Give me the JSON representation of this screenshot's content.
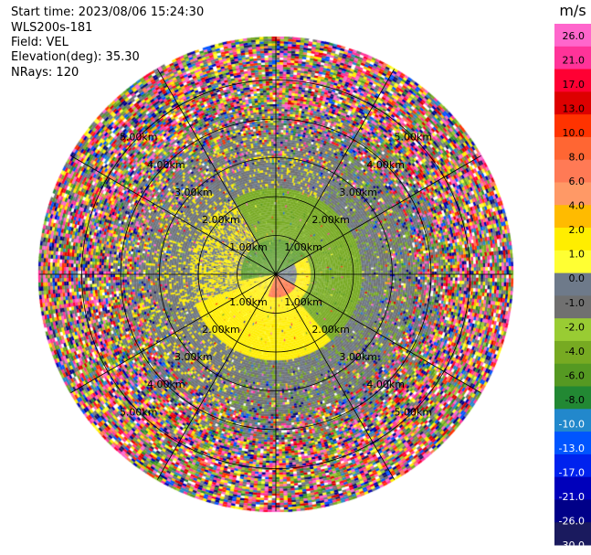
{
  "header": {
    "start_time": "Start time: 2023/08/06 15:24:30",
    "instrument": "WLS200s-181",
    "field": "Field: VEL",
    "elevation": "Elevation(deg): 35.30",
    "nrays": "NRays: 120"
  },
  "chart_data": {
    "type": "heatmap",
    "projection": "polar-ppi",
    "field": "VEL",
    "units": "m/s",
    "elevation_deg": 35.3,
    "nrays": 120,
    "range_rings_km": [
      1.0,
      2.0,
      3.0,
      4.0,
      5.0
    ],
    "range_ring_labels": [
      "1.00km",
      "2.00km",
      "3.00km",
      "4.00km",
      "5.00km"
    ],
    "max_range_km": 6.1,
    "spoke_step_deg": 30,
    "colorbar": {
      "title": "m/s",
      "tick_labels": [
        "26.0",
        "21.0",
        "17.0",
        "13.0",
        "10.0",
        "8.0",
        "6.0",
        "4.0",
        "2.0",
        "1.0",
        "0.0",
        "-1.0",
        "-2.0",
        "-4.0",
        "-6.0",
        "-8.0",
        "-10.0",
        "-13.0",
        "-17.0",
        "-21.0",
        "-26.0",
        "-30.0"
      ],
      "colors": [
        "#ff66cc",
        "#ff3399",
        "#ff0033",
        "#dd0000",
        "#ff3300",
        "#ff6633",
        "#ff7a55",
        "#ff9966",
        "#ffbb00",
        "#ffee00",
        "#ffff33",
        "#6e7a8a",
        "#707070",
        "#99cc33",
        "#77aa22",
        "#559922",
        "#228833",
        "#2288cc",
        "#0055ff",
        "#0022ee",
        "#0000bb",
        "#000088",
        "#1a1a5e"
      ]
    },
    "inner_field_m_s": {
      "note_near_zero": 0.0,
      "north_lobe": -5.0,
      "east_lobe": -2.0,
      "south_lobe": 3.0,
      "south_core": 8.0,
      "west_lobe": 2.0
    }
  }
}
